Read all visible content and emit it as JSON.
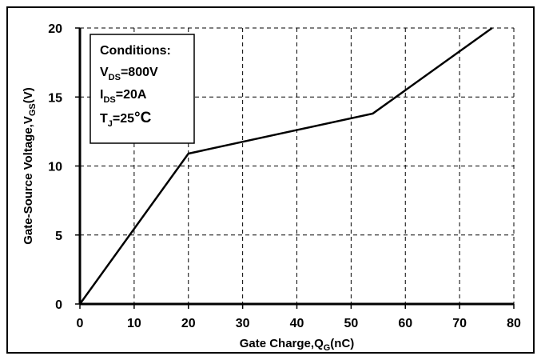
{
  "chart_data": {
    "type": "line",
    "xlabel_main": "Gate Charge,Q",
    "xlabel_sub": "G",
    "xlabel_unit": "(nC)",
    "ylabel_main": "Gate-Source Voltage,V",
    "ylabel_sub": "GS",
    "ylabel_unit": "(V)",
    "xlim": [
      0,
      80
    ],
    "ylim": [
      0,
      20
    ],
    "x_ticks": [
      0,
      10,
      20,
      30,
      40,
      50,
      60,
      70,
      80
    ],
    "y_ticks": [
      0,
      5,
      10,
      15,
      20
    ],
    "grid": true,
    "series": [
      {
        "color": "#000000",
        "x": [
          0,
          20,
          54,
          76
        ],
        "y": [
          0,
          10.9,
          13.8,
          20
        ]
      }
    ],
    "annotation": {
      "title": "Conditions:",
      "lines": [
        {
          "main": "V",
          "sub": "DS",
          "rest": "=800V"
        },
        {
          "main": "I",
          "sub": "DS",
          "rest": "=20A"
        },
        {
          "main": "T",
          "sub": "J",
          "rest": "=25",
          "degree": "°C"
        }
      ]
    }
  }
}
